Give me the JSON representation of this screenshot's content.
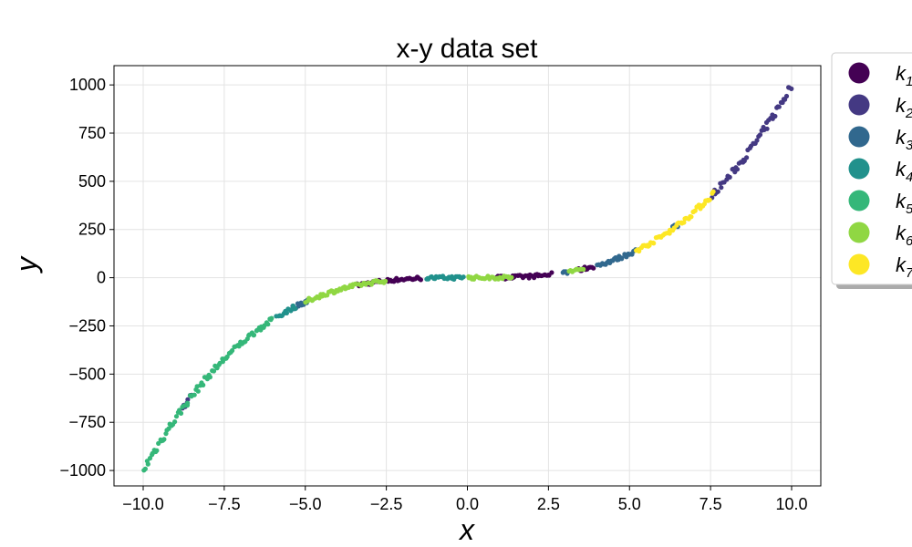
{
  "chart_data": {
    "type": "scatter",
    "title": "x-y data set",
    "xlabel": "x",
    "ylabel": "y",
    "xlim": [
      -10.9,
      10.9
    ],
    "ylim": [
      -1080,
      1100
    ],
    "xticks": [
      -10.0,
      -7.5,
      -5.0,
      -2.5,
      0.0,
      2.5,
      5.0,
      7.5,
      10.0
    ],
    "xtick_labels": [
      "−10.0",
      "−7.5",
      "−5.0",
      "−2.5",
      "0.0",
      "2.5",
      "5.0",
      "7.5",
      "10.0"
    ],
    "yticks": [
      -1000,
      -750,
      -500,
      -250,
      0,
      250,
      500,
      750,
      1000
    ],
    "ytick_labels": [
      "−1000",
      "−750",
      "−500",
      "−250",
      "0",
      "250",
      "500",
      "750",
      "1000"
    ],
    "grid": true,
    "legend_position": "outside-top-right",
    "model": "y = x^3",
    "series": [
      {
        "name": "k",
        "sub": "1",
        "color": "#440154",
        "x_ranges": [
          [
            -3.4,
            -1.4
          ],
          [
            0.8,
            2.6
          ],
          [
            3.4,
            3.9
          ]
        ]
      },
      {
        "name": "k",
        "sub": "2",
        "color": "#443983",
        "x_ranges": [
          [
            -8.8,
            -8.5
          ],
          [
            7.5,
            10.0
          ]
        ]
      },
      {
        "name": "k",
        "sub": "3",
        "color": "#31688e",
        "x_ranges": [
          [
            -5.4,
            -4.9
          ],
          [
            2.9,
            3.1
          ],
          [
            4.0,
            5.3
          ],
          [
            6.3,
            6.5
          ]
        ]
      },
      {
        "name": "k",
        "sub": "4",
        "color": "#21918c",
        "x_ranges": [
          [
            -5.9,
            -5.3
          ],
          [
            -1.3,
            -0.1
          ]
        ]
      },
      {
        "name": "k",
        "sub": "5",
        "color": "#35b779",
        "x_ranges": [
          [
            -10.0,
            -6.0
          ]
        ]
      },
      {
        "name": "k",
        "sub": "6",
        "color": "#90d743",
        "x_ranges": [
          [
            -5.0,
            -2.5
          ],
          [
            0.0,
            1.4
          ],
          [
            3.1,
            3.6
          ]
        ]
      },
      {
        "name": "k",
        "sub": "7",
        "color": "#fde725",
        "x_ranges": [
          [
            5.2,
            7.6
          ]
        ]
      }
    ]
  }
}
